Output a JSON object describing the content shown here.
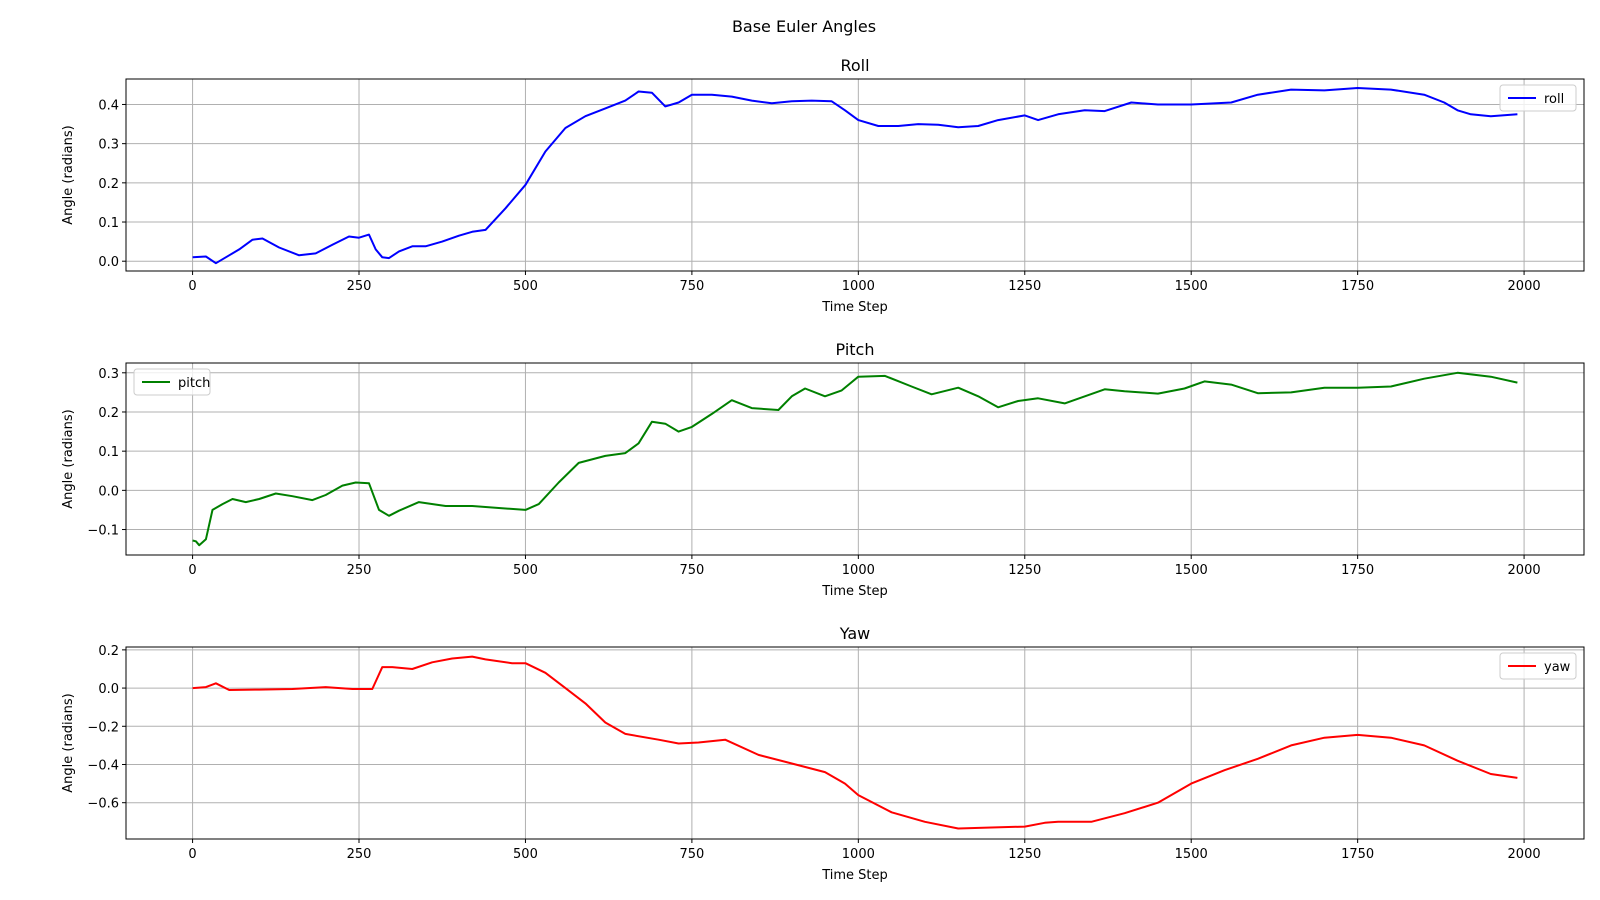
{
  "figure": {
    "title": "Base Euler Angles"
  },
  "chart_data": [
    {
      "type": "line",
      "title": "Roll",
      "xlabel": "Time Step",
      "ylabel": "Angle (radians)",
      "xlim": [
        -100,
        2090
      ],
      "ylim": [
        -0.025,
        0.465
      ],
      "xticks": [
        0,
        250,
        500,
        750,
        1000,
        1250,
        1500,
        1750,
        2000
      ],
      "yticks": [
        0.0,
        0.1,
        0.2,
        0.3,
        0.4
      ],
      "ytick_labels": [
        "0.0",
        "0.1",
        "0.2",
        "0.3",
        "0.4"
      ],
      "grid": true,
      "legend": "top-right",
      "color": "#0000ff",
      "series": [
        {
          "name": "roll",
          "x": [
            0,
            20,
            35,
            55,
            70,
            90,
            105,
            130,
            160,
            185,
            210,
            235,
            250,
            265,
            275,
            285,
            295,
            310,
            330,
            350,
            375,
            400,
            420,
            440,
            470,
            500,
            530,
            560,
            590,
            620,
            650,
            670,
            690,
            710,
            730,
            750,
            780,
            810,
            840,
            870,
            900,
            930,
            960,
            980,
            1000,
            1030,
            1060,
            1090,
            1120,
            1150,
            1180,
            1210,
            1250,
            1270,
            1300,
            1340,
            1370,
            1410,
            1450,
            1500,
            1560,
            1600,
            1650,
            1700,
            1750,
            1800,
            1850,
            1880,
            1900,
            1920,
            1950,
            1990
          ],
          "y": [
            0.01,
            0.012,
            -0.005,
            0.015,
            0.03,
            0.055,
            0.058,
            0.035,
            0.015,
            0.02,
            0.042,
            0.063,
            0.06,
            0.068,
            0.03,
            0.01,
            0.008,
            0.025,
            0.038,
            0.038,
            0.05,
            0.065,
            0.075,
            0.08,
            0.135,
            0.195,
            0.28,
            0.34,
            0.37,
            0.39,
            0.41,
            0.433,
            0.43,
            0.395,
            0.405,
            0.425,
            0.425,
            0.42,
            0.41,
            0.403,
            0.408,
            0.41,
            0.408,
            0.385,
            0.36,
            0.345,
            0.345,
            0.35,
            0.348,
            0.342,
            0.345,
            0.36,
            0.372,
            0.36,
            0.375,
            0.385,
            0.383,
            0.405,
            0.4,
            0.4,
            0.405,
            0.425,
            0.438,
            0.436,
            0.442,
            0.438,
            0.425,
            0.405,
            0.385,
            0.375,
            0.37,
            0.375
          ]
        }
      ]
    },
    {
      "type": "line",
      "title": "Pitch",
      "xlabel": "Time Step",
      "ylabel": "Angle (radians)",
      "xlim": [
        -100,
        2090
      ],
      "ylim": [
        -0.165,
        0.325
      ],
      "xticks": [
        0,
        250,
        500,
        750,
        1000,
        1250,
        1500,
        1750,
        2000
      ],
      "yticks": [
        -0.1,
        0.0,
        0.1,
        0.2,
        0.3
      ],
      "ytick_labels": [
        "−0.1",
        "0.0",
        "0.1",
        "0.2",
        "0.3"
      ],
      "grid": true,
      "legend": "top-left",
      "color": "#008000",
      "series": [
        {
          "name": "pitch",
          "x": [
            0,
            5,
            10,
            20,
            30,
            45,
            60,
            80,
            100,
            125,
            150,
            180,
            200,
            225,
            245,
            265,
            280,
            295,
            310,
            340,
            380,
            420,
            460,
            500,
            520,
            550,
            580,
            620,
            650,
            670,
            690,
            710,
            730,
            750,
            780,
            810,
            840,
            880,
            900,
            920,
            950,
            975,
            1000,
            1040,
            1080,
            1110,
            1150,
            1180,
            1210,
            1240,
            1270,
            1310,
            1370,
            1400,
            1450,
            1490,
            1520,
            1560,
            1600,
            1650,
            1700,
            1750,
            1800,
            1850,
            1900,
            1950,
            1990
          ],
          "y": [
            -0.128,
            -0.13,
            -0.14,
            -0.125,
            -0.05,
            -0.035,
            -0.022,
            -0.03,
            -0.022,
            -0.008,
            -0.015,
            -0.025,
            -0.012,
            0.012,
            0.02,
            0.018,
            -0.05,
            -0.065,
            -0.052,
            -0.03,
            -0.04,
            -0.04,
            -0.045,
            -0.05,
            -0.035,
            0.02,
            0.07,
            0.088,
            0.095,
            0.12,
            0.175,
            0.17,
            0.15,
            0.162,
            0.195,
            0.23,
            0.21,
            0.205,
            0.24,
            0.26,
            0.24,
            0.255,
            0.29,
            0.292,
            0.265,
            0.245,
            0.262,
            0.24,
            0.212,
            0.228,
            0.235,
            0.222,
            0.258,
            0.253,
            0.247,
            0.26,
            0.278,
            0.27,
            0.248,
            0.25,
            0.262,
            0.262,
            0.265,
            0.285,
            0.3,
            0.29,
            0.275
          ]
        }
      ]
    },
    {
      "type": "line",
      "title": "Yaw",
      "xlabel": "Time Step",
      "ylabel": "Angle (radians)",
      "xlim": [
        -100,
        2090
      ],
      "ylim": [
        -0.79,
        0.215
      ],
      "xticks": [
        0,
        250,
        500,
        750,
        1000,
        1250,
        1500,
        1750,
        2000
      ],
      "yticks": [
        -0.6,
        -0.4,
        -0.2,
        0.0,
        0.2
      ],
      "ytick_labels": [
        "−0.6",
        "−0.4",
        "−0.2",
        "0.0",
        "0.2"
      ],
      "grid": true,
      "legend": "top-right",
      "color": "#ff0000",
      "series": [
        {
          "name": "yaw",
          "x": [
            0,
            20,
            35,
            55,
            100,
            150,
            200,
            240,
            270,
            285,
            300,
            330,
            360,
            390,
            420,
            440,
            480,
            500,
            530,
            560,
            590,
            620,
            650,
            700,
            730,
            760,
            800,
            850,
            900,
            950,
            980,
            1000,
            1050,
            1100,
            1150,
            1200,
            1250,
            1280,
            1300,
            1350,
            1400,
            1450,
            1500,
            1550,
            1600,
            1650,
            1700,
            1750,
            1800,
            1850,
            1900,
            1950,
            1990
          ],
          "y": [
            0.0,
            0.005,
            0.025,
            -0.01,
            -0.008,
            -0.005,
            0.005,
            -0.005,
            -0.005,
            0.11,
            0.11,
            0.1,
            0.135,
            0.155,
            0.165,
            0.15,
            0.13,
            0.13,
            0.08,
            0.0,
            -0.08,
            -0.18,
            -0.24,
            -0.27,
            -0.29,
            -0.285,
            -0.27,
            -0.35,
            -0.395,
            -0.44,
            -0.5,
            -0.56,
            -0.65,
            -0.7,
            -0.735,
            -0.73,
            -0.725,
            -0.705,
            -0.7,
            -0.7,
            -0.655,
            -0.6,
            -0.5,
            -0.43,
            -0.37,
            -0.3,
            -0.26,
            -0.245,
            -0.26,
            -0.3,
            -0.38,
            -0.45,
            -0.47
          ]
        }
      ]
    }
  ]
}
